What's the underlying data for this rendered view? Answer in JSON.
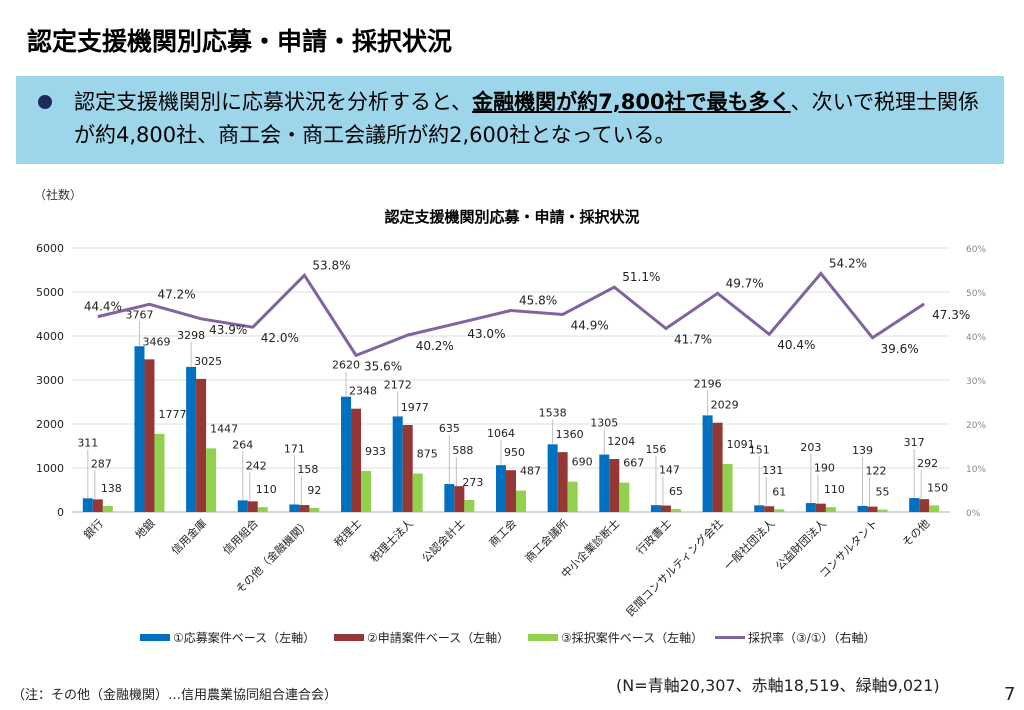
{
  "page": {
    "title": "認定支援機関別応募・申請・採択状況",
    "summary_pre": "認定支援機関別に応募状況を分析すると、",
    "summary_bold": "金融機関が約7,800社で最も多く",
    "summary_post": "、次いで税理士関係が約4,800社、商工会・商工会議所が約2,600社となっている。",
    "unit_label": "（社数）",
    "note": "（注：その他（金融機関）…信用農業協同組合連合会）",
    "totals": "(N=青軸20,307、赤軸18,519、緑軸9,021)",
    "page_number": "7"
  },
  "chart_data": {
    "type": "bar",
    "title": "認定支援機関別応募・申請・採択状況",
    "xlabel": "",
    "ylabel": "（社数）",
    "ylim": [
      0,
      6000
    ],
    "yticks": [
      "0",
      "1000",
      "2000",
      "3000",
      "4000",
      "5000",
      "6000"
    ],
    "y2lim": [
      0,
      60
    ],
    "y2ticks": [
      "0%",
      "10%",
      "20%",
      "30%",
      "40%",
      "50%",
      "60%"
    ],
    "grid": true,
    "legend_position": "bottom",
    "categories": [
      "銀行",
      "地銀",
      "信用金庫",
      "信用組合",
      "その他（金融機関）",
      "税理士",
      "税理士法人",
      "公認会計士",
      "商工会",
      "商工会議所",
      "中小企業診断士",
      "行政書士",
      "民間コンサルティング会社",
      "一般社団法人",
      "公益財団法人",
      "コンサルタント",
      "その他"
    ],
    "series": [
      {
        "name": "①応募案件ベース（左軸）",
        "color": "#0070c0",
        "axis": "left",
        "values": [
          311,
          3767,
          3298,
          264,
          171,
          2620,
          2172,
          635,
          1064,
          1538,
          1305,
          156,
          2196,
          151,
          203,
          139,
          317
        ]
      },
      {
        "name": "②申請案件ベース（左軸）",
        "color": "#953735",
        "axis": "left",
        "values": [
          287,
          3469,
          3025,
          242,
          158,
          2348,
          1977,
          588,
          950,
          1360,
          1204,
          147,
          2029,
          131,
          190,
          122,
          292
        ]
      },
      {
        "name": "③採択案件ベース（左軸）",
        "color": "#92d050",
        "axis": "left",
        "values": [
          138,
          1777,
          1447,
          110,
          92,
          933,
          875,
          273,
          487,
          690,
          667,
          65,
          1091,
          61,
          110,
          55,
          150
        ]
      },
      {
        "name": "採択率（③/①）（右軸）",
        "color": "#8064a2",
        "axis": "right",
        "type": "line",
        "values": [
          44.4,
          47.2,
          43.9,
          42.0,
          53.8,
          35.6,
          40.2,
          43.0,
          45.8,
          44.9,
          51.1,
          41.7,
          49.7,
          40.4,
          54.2,
          39.6,
          47.3
        ],
        "labels": [
          "44.4%",
          "47.2%",
          "43.9%",
          "42.0%",
          "53.8%",
          "35.6%",
          "40.2%",
          "43.0%",
          "45.8%",
          "44.9%",
          "51.1%",
          "41.7%",
          "49.7%",
          "40.4%",
          "54.2%",
          "39.6%",
          "47.3%"
        ]
      }
    ]
  }
}
